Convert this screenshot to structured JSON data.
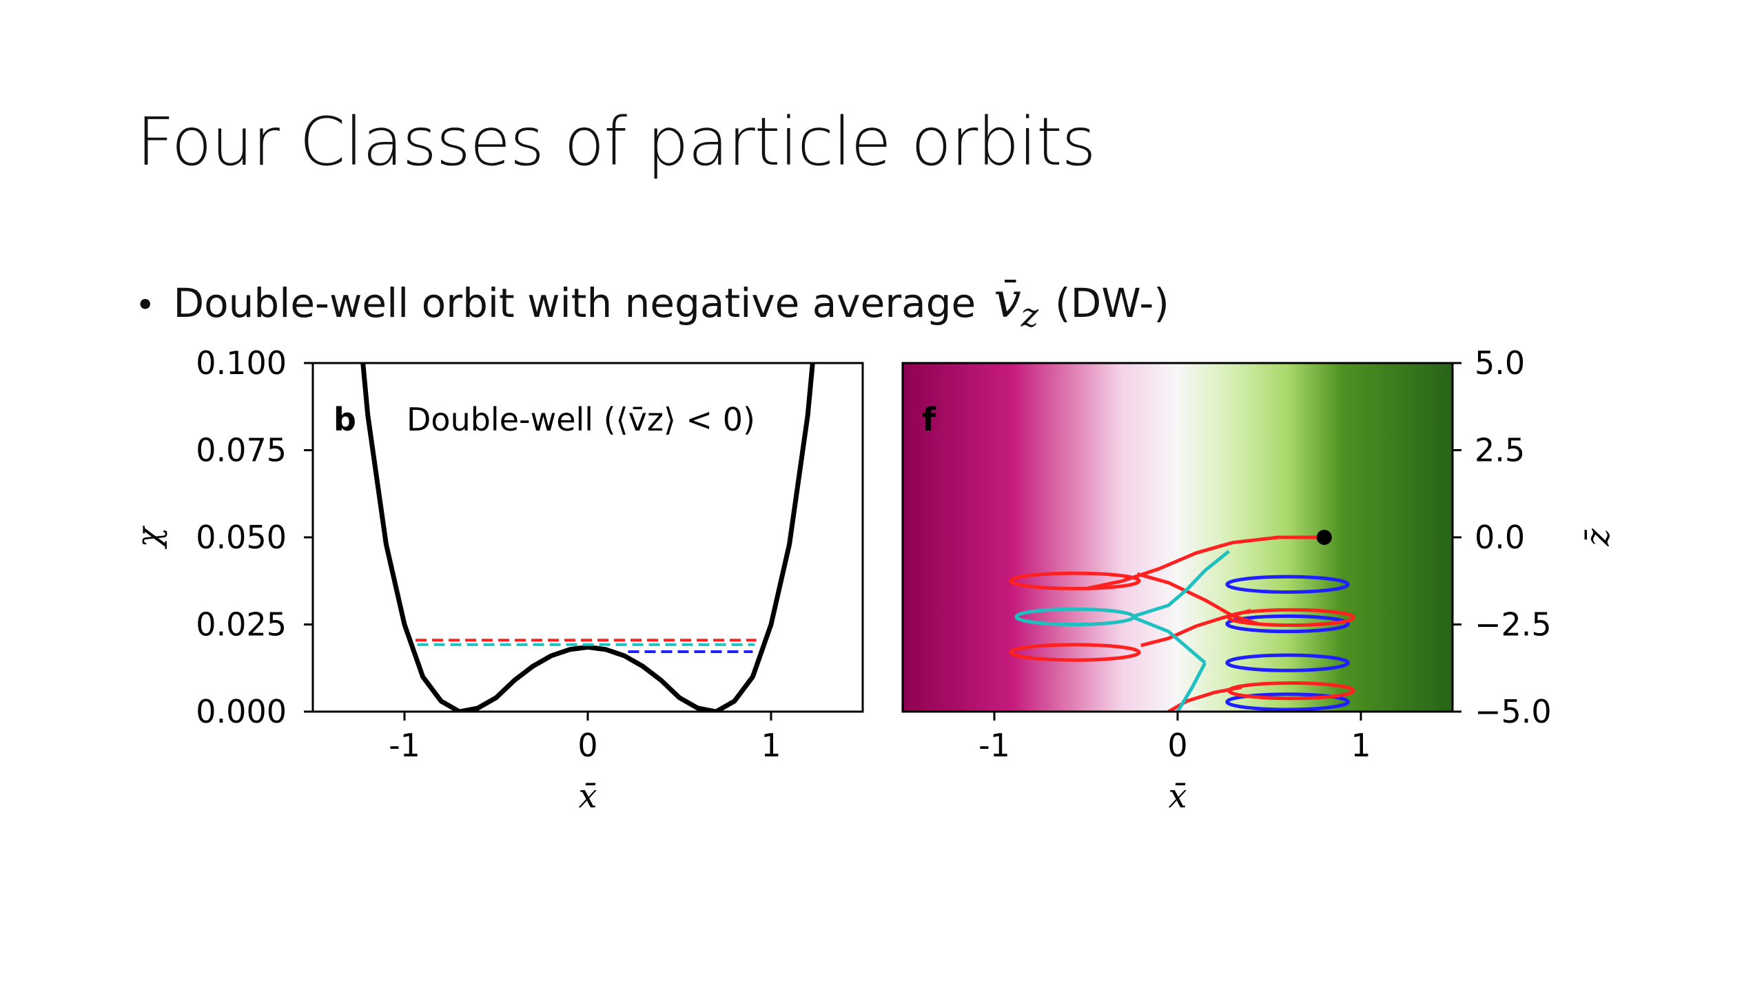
{
  "slide": {
    "title": "Four Classes of particle orbits",
    "bullet_prefix": "Double-well orbit with negative average",
    "bullet_symbol": "v",
    "bullet_subscript": "z",
    "bullet_suffix": "(DW-)"
  },
  "chart_data": [
    {
      "type": "line",
      "panel_label": "b",
      "annotation": "Double-well (⟨v̄z⟩ < 0)",
      "xlabel": "x̄",
      "ylabel": "χ",
      "xlim": [
        -1.5,
        1.5
      ],
      "ylim": [
        0,
        0.1
      ],
      "xticks": [
        "-1",
        "0",
        "1"
      ],
      "yticks": [
        "0.000",
        "0.025",
        "0.050",
        "0.075",
        "0.100"
      ],
      "grid": false,
      "series": [
        {
          "color": "#000000",
          "style": "solid",
          "x": [
            -1.3,
            -1.2,
            -1.1,
            -1.0,
            -0.9,
            -0.8,
            -0.7,
            -0.6,
            -0.5,
            -0.4,
            -0.3,
            -0.2,
            -0.1,
            0.0,
            0.1,
            0.2,
            0.3,
            0.4,
            0.5,
            0.6,
            0.7,
            0.8,
            0.9,
            1.0,
            1.1,
            1.2,
            1.3
          ],
          "y": [
            0.141,
            0.085,
            0.048,
            0.025,
            0.01,
            0.003,
            0.0,
            0.001,
            0.004,
            0.009,
            0.013,
            0.016,
            0.0178,
            0.0185,
            0.0178,
            0.016,
            0.013,
            0.009,
            0.004,
            0.001,
            0.0,
            0.003,
            0.01,
            0.025,
            0.048,
            0.085,
            0.141
          ]
        },
        {
          "color": "#ff2020",
          "style": "dashed",
          "x": [
            -0.94,
            0.92
          ],
          "y": [
            0.0205,
            0.0205
          ]
        },
        {
          "color": "#20c0c0",
          "style": "dashed",
          "x": [
            -0.93,
            0.91
          ],
          "y": [
            0.0192,
            0.0192
          ]
        },
        {
          "color": "#2020ff",
          "style": "dashed",
          "x": [
            0.22,
            0.9
          ],
          "y": [
            0.0172,
            0.0172
          ]
        }
      ]
    },
    {
      "type": "line",
      "panel_label": "f",
      "xlabel": "x̄",
      "ylabel": "z̄",
      "xlim": [
        -1.5,
        1.5
      ],
      "ylim": [
        -5.0,
        5.0
      ],
      "xticks": [
        "-1",
        "0",
        "1"
      ],
      "yticks": [
        "5.0",
        "2.5",
        "0.0",
        "−2.5",
        "−5.0"
      ],
      "grid": false,
      "background_colormap": "PiYG",
      "start_point": {
        "x": 0.8,
        "z": 0.0,
        "color": "#000000"
      },
      "series": [
        {
          "color": "#ff2020",
          "segment": "red-trajectory"
        },
        {
          "color": "#20c0c0",
          "segment": "cyan-trajectory"
        },
        {
          "color": "#2020ff",
          "segment": "blue-trajectory"
        }
      ]
    }
  ]
}
